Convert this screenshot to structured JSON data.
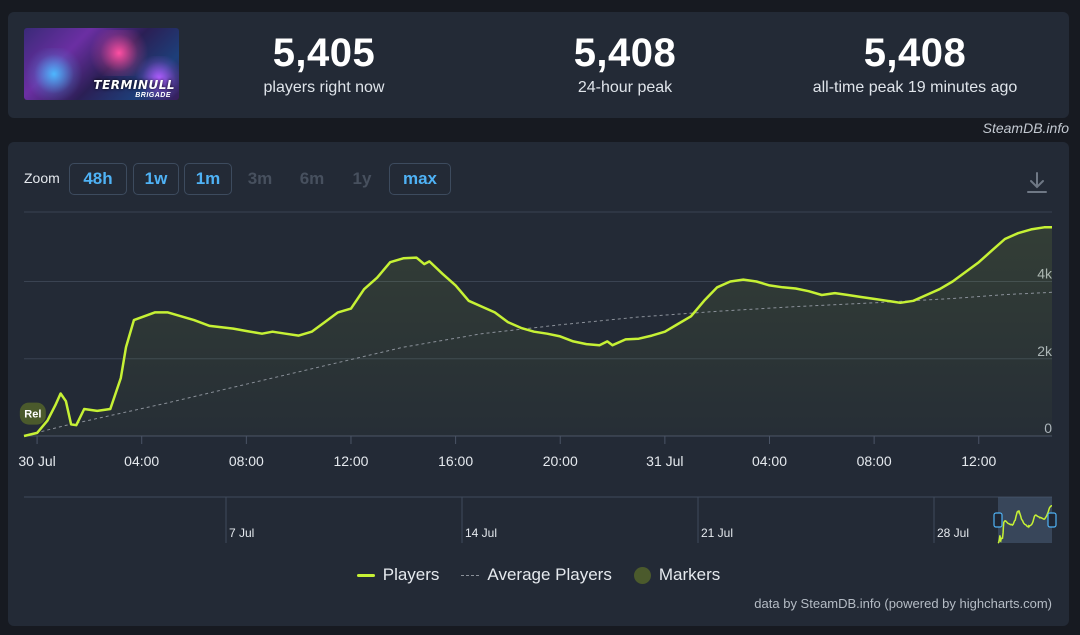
{
  "stats": {
    "current": {
      "value": "5,405",
      "label": "players right now"
    },
    "peak24": {
      "value": "5,408",
      "label": "24-hour peak"
    },
    "alltime": {
      "value": "5,408",
      "label": "all-time peak 19 minutes ago"
    }
  },
  "game_logo": {
    "title": "TERMINULL",
    "subtitle": "BRIGADE"
  },
  "credit_top": "SteamDB.info",
  "zoom": {
    "label": "Zoom",
    "buttons": [
      {
        "label": "48h",
        "enabled": true
      },
      {
        "label": "1w",
        "enabled": true
      },
      {
        "label": "1m",
        "enabled": true
      },
      {
        "label": "3m",
        "enabled": false
      },
      {
        "label": "6m",
        "enabled": false
      },
      {
        "label": "1y",
        "enabled": false
      },
      {
        "label": "max",
        "enabled": true
      }
    ]
  },
  "colors": {
    "players": "#c6f135",
    "average": "#8a9099",
    "markers": "#4b5a2c",
    "accent": "#4fb2f5"
  },
  "icons": {
    "download": "download-icon"
  },
  "chart_data": {
    "type": "line",
    "x_unit": "hours since 30 Jul 00:00",
    "xlim": [
      -0.5,
      38.8
    ],
    "ylim": [
      0,
      5800
    ],
    "y_ticks": [
      {
        "value": 0,
        "label": "0"
      },
      {
        "value": 2000,
        "label": "2k"
      },
      {
        "value": 4000,
        "label": "4k"
      }
    ],
    "x_ticks": [
      {
        "value": 0,
        "label": "30 Jul"
      },
      {
        "value": 4,
        "label": "04:00"
      },
      {
        "value": 8,
        "label": "08:00"
      },
      {
        "value": 12,
        "label": "12:00"
      },
      {
        "value": 16,
        "label": "16:00"
      },
      {
        "value": 20,
        "label": "20:00"
      },
      {
        "value": 24,
        "label": "31 Jul"
      },
      {
        "value": 28,
        "label": "04:00"
      },
      {
        "value": 32,
        "label": "08:00"
      },
      {
        "value": 36,
        "label": "12:00"
      }
    ],
    "grid": true,
    "legend_position": "bottom",
    "series": [
      {
        "name": "Players",
        "x": [
          -0.5,
          0,
          0.4,
          0.7,
          0.9,
          1.1,
          1.3,
          1.5,
          1.8,
          2.3,
          2.8,
          3.2,
          3.4,
          3.7,
          4.5,
          5.0,
          6.0,
          6.6,
          7.5,
          8.0,
          8.6,
          9.0,
          9.5,
          10.0,
          10.5,
          11.0,
          11.5,
          12.0,
          12.5,
          13.0,
          13.5,
          14.0,
          14.5,
          14.8,
          15.0,
          15.5,
          16.0,
          16.5,
          17.0,
          17.5,
          18.0,
          18.5,
          19.0,
          19.5,
          20.0,
          20.5,
          21.0,
          21.5,
          21.8,
          22.0,
          22.5,
          23.0,
          23.5,
          24.0,
          24.5,
          25.0,
          25.5,
          26.0,
          26.5,
          27.0,
          27.5,
          28.0,
          28.5,
          29.0,
          29.5,
          30.0,
          30.5,
          31.0,
          31.5,
          32.0,
          32.5,
          33.0,
          33.5,
          34.0,
          34.5,
          35.0,
          35.5,
          36.0,
          36.5,
          37.0,
          37.5,
          38.0,
          38.5,
          38.8
        ],
        "y": [
          0,
          80,
          400,
          800,
          1100,
          900,
          300,
          280,
          700,
          650,
          700,
          1500,
          2300,
          3000,
          3200,
          3200,
          3000,
          2850,
          2780,
          2720,
          2650,
          2700,
          2650,
          2600,
          2700,
          2950,
          3200,
          3300,
          3800,
          4100,
          4500,
          4600,
          4620,
          4450,
          4520,
          4200,
          3900,
          3500,
          3350,
          3200,
          2950,
          2800,
          2700,
          2650,
          2580,
          2450,
          2380,
          2350,
          2450,
          2350,
          2500,
          2520,
          2600,
          2700,
          2900,
          3100,
          3500,
          3850,
          4000,
          4050,
          4000,
          3900,
          3850,
          3820,
          3750,
          3650,
          3700,
          3650,
          3600,
          3550,
          3500,
          3450,
          3500,
          3650,
          3800,
          4000,
          4250,
          4500,
          4800,
          5100,
          5250,
          5350,
          5405,
          5405
        ]
      },
      {
        "name": "Average Players",
        "x": [
          -0.5,
          1,
          3,
          5,
          8,
          11,
          14,
          17,
          20,
          23,
          26,
          29,
          32,
          35,
          37,
          38.8
        ],
        "y": [
          0,
          260,
          560,
          860,
          1340,
          1820,
          2300,
          2650,
          2880,
          3080,
          3230,
          3350,
          3450,
          3560,
          3660,
          3720
        ]
      }
    ],
    "markers": [
      {
        "x": -0.2,
        "y": 580,
        "label": "Rel"
      }
    ],
    "navigator": {
      "x_ticks": [
        {
          "label": "7 Jul"
        },
        {
          "label": "14 Jul"
        },
        {
          "label": "21 Jul"
        },
        {
          "label": "28 Jul"
        }
      ]
    }
  },
  "legend": {
    "players": "Players",
    "average": "Average Players",
    "markers": "Markers"
  },
  "credit_bottom": "data by SteamDB.info (powered by highcharts.com)"
}
